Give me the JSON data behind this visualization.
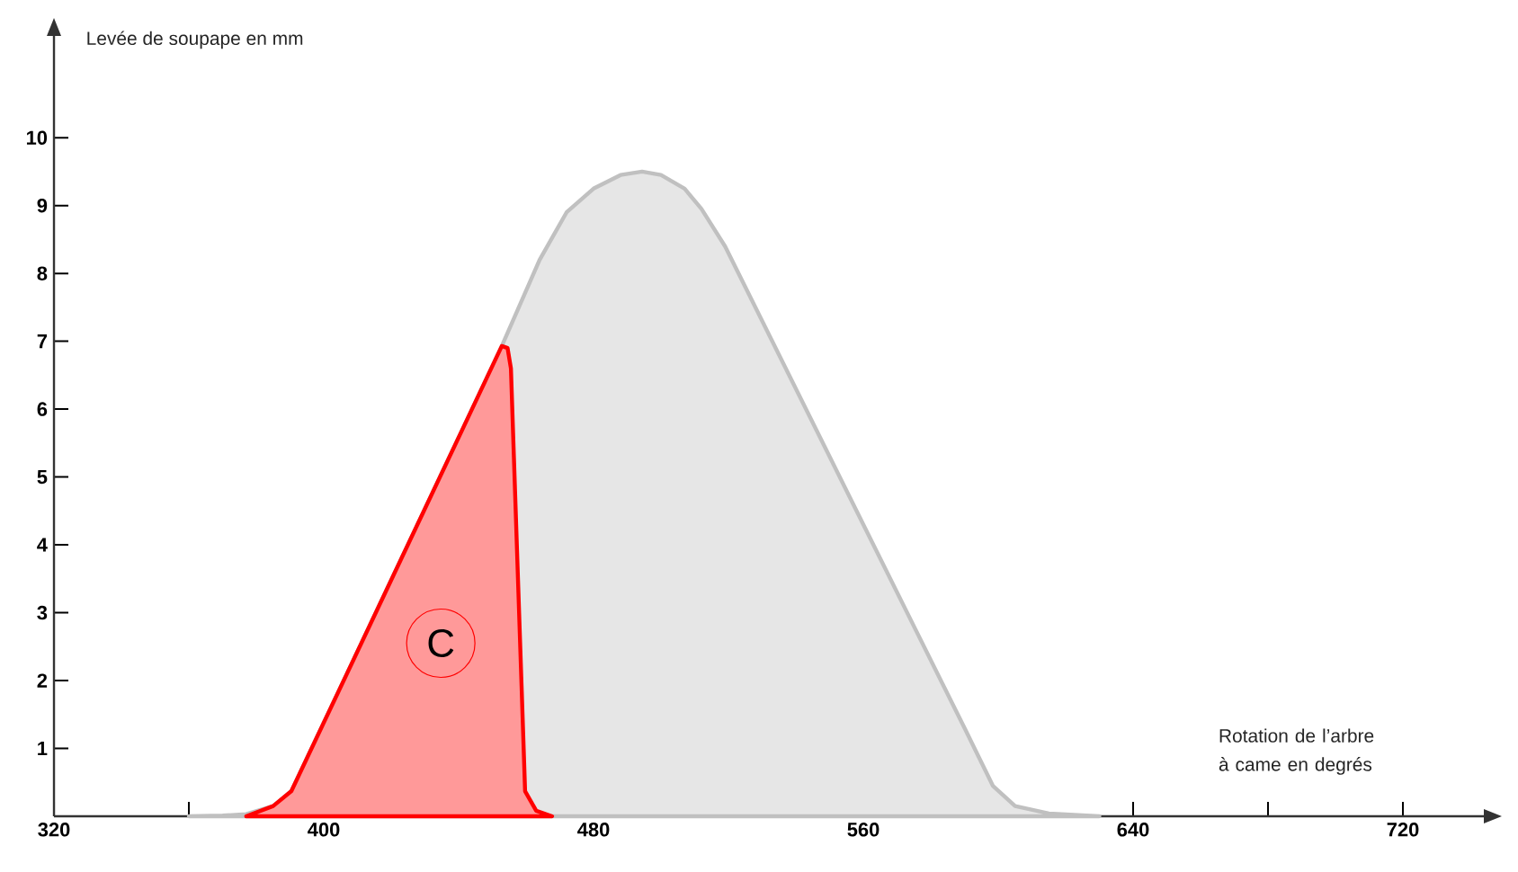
{
  "chart_data": {
    "type": "area",
    "xlabel": "Rotation de l’arbre à came en degrés",
    "ylabel": "Levée de soupape en mm",
    "xlim": [
      320,
      744
    ],
    "ylim": [
      0,
      11.5
    ],
    "xticks": [
      320,
      {
        "value": 360,
        "label": null
      },
      400,
      {
        "value": 440,
        "label": null
      },
      480,
      {
        "value": 520,
        "label": null
      },
      560,
      {
        "value": 600,
        "label": null
      },
      640,
      {
        "value": 680,
        "label": null
      },
      720
    ],
    "yticks": [
      1,
      2,
      3,
      4,
      5,
      6,
      7,
      8,
      9,
      10
    ],
    "grid": false,
    "marker": "none",
    "line_style": "solid",
    "annotations": [
      {
        "text": "C",
        "x": 434.7,
        "y": 2.55
      }
    ],
    "series": [
      {
        "color": "#c0c0c0",
        "x": [
          360,
          370,
          377,
          385,
          390.4,
          420,
          452.8,
          464,
          472,
          480,
          488,
          494.4,
          500,
          507,
          512,
          519,
          530,
          560,
          590,
          598.4,
          605,
          615,
          630
        ],
        "values": [
          0,
          0.01,
          0.03,
          0.15,
          0.37,
          3.48,
          6.93,
          8.2,
          8.9,
          9.25,
          9.45,
          9.5,
          9.45,
          9.25,
          8.95,
          8.4,
          7.3,
          4.3,
          1.3,
          0.45,
          0.15,
          0.04,
          0
        ]
      },
      {
        "color": "#ff0000",
        "x": [
          377,
          385,
          390.4,
          420,
          452.8,
          454.5,
          455.5,
          459.7,
          463,
          467.7
        ],
        "values": [
          0,
          0.15,
          0.37,
          3.48,
          6.93,
          6.9,
          6.6,
          0.37,
          0.08,
          0
        ]
      }
    ]
  }
}
